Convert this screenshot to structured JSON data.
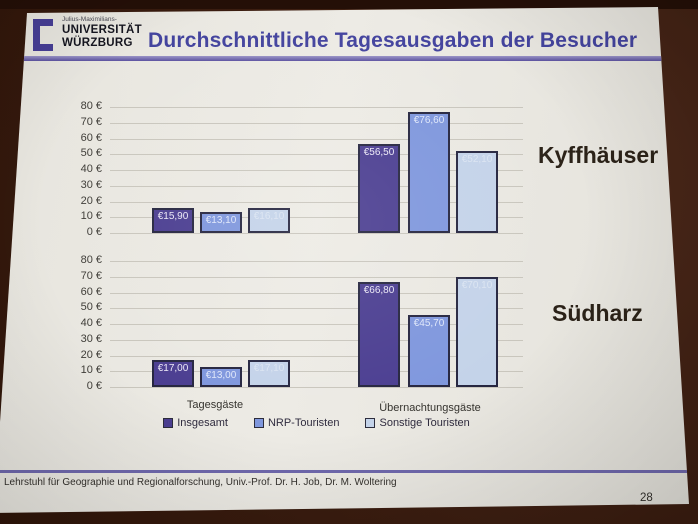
{
  "header": {
    "logo": {
      "pretitle": "Julius-Maximilians-",
      "line1": "UNIVERSITÄT",
      "line2": "WÜRZBURG"
    },
    "title": "Durchschnittliche Tagesausgaben der Besucher"
  },
  "colors": {
    "slide_background": "#eae8e1",
    "wall_brown": "#3b1d10",
    "title_purple": "#44449e",
    "header_rule_purple": "#5c52a0",
    "footer_rule_purple": "#6f68ac",
    "bar_insgesamt": "#4b3e91",
    "bar_nrp_touristen": "#7f97dd",
    "bar_sonstige_touristen": "#c4d3e9"
  },
  "chart_data": [
    {
      "type": "bar",
      "title": "Kyffhäuser",
      "categories": [
        "Tagesgäste",
        "Übernachtungsgäste"
      ],
      "series": [
        {
          "name": "Insgesamt",
          "values": [
            15.9,
            56.5
          ],
          "labels": [
            "€15,90",
            "€56,50"
          ]
        },
        {
          "name": "NRP-Touristen",
          "values": [
            13.1,
            76.6
          ],
          "labels": [
            "€13,10",
            "€76,60"
          ]
        },
        {
          "name": "Sonstige Touristen",
          "values": [
            16.1,
            52.1
          ],
          "labels": [
            "€16,10",
            "€52,10"
          ],
          "label_style": "washed"
        }
      ],
      "ylim": [
        0,
        80
      ],
      "ytick_step": 10,
      "ytick_suffix": " €",
      "grid": true,
      "legend_position": "bottom"
    },
    {
      "type": "bar",
      "title": "Südharz",
      "categories": [
        "Tagesgäste",
        "Übernachtungsgäste"
      ],
      "series": [
        {
          "name": "Insgesamt",
          "values": [
            17.0,
            66.8
          ],
          "labels": [
            "€17,00",
            "€66,80"
          ]
        },
        {
          "name": "NRP-Touristen",
          "values": [
            13.0,
            45.7
          ],
          "labels": [
            "€13,00",
            "€45,70"
          ]
        },
        {
          "name": "Sonstige Touristen",
          "values": [
            17.1,
            70.1
          ],
          "labels": [
            "€17,10",
            "€70,10"
          ],
          "label_style": "washed"
        }
      ],
      "ylim": [
        0,
        80
      ],
      "ytick_step": 10,
      "ytick_suffix": " €",
      "grid": true,
      "legend_position": "bottom"
    }
  ],
  "footer": {
    "text": "Lehrstuhl für Geographie und Regionalforschung, Univ.-Prof. Dr. H. Job, Dr. M. Woltering",
    "page_number": "28"
  }
}
